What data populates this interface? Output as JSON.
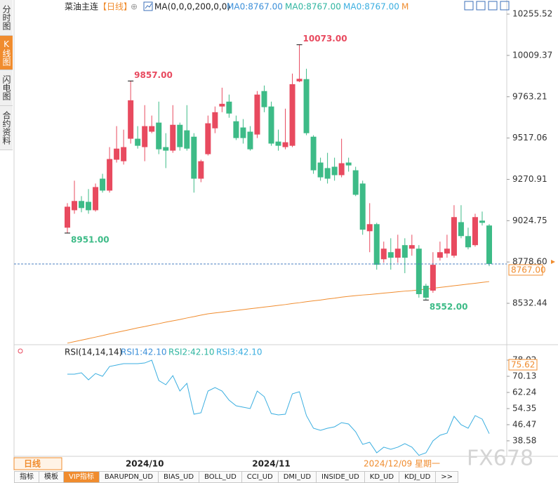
{
  "sidebar": [
    "分时图",
    "K线图",
    "闪电图",
    "合约资料"
  ],
  "header": {
    "symbol": "菜油主连",
    "period": "【日线】",
    "ma_params": "MA(0,0,0,200,0,0)",
    "ma_values": [
      {
        "text": "MA0:8767.00",
        "color": "#3b8fd9"
      },
      {
        "text": "MA0:8767.00",
        "color": "#2fb5a0"
      },
      {
        "text": "MA0:8767.00",
        "color": "#3aaee0"
      }
    ],
    "ma_more": "M"
  },
  "chart_data": {
    "type": "candlestick",
    "categories": [
      null,
      null,
      null,
      null,
      null,
      null,
      null,
      null,
      null,
      null,
      null,
      "2024/10",
      null,
      null,
      null,
      null,
      null,
      null,
      null,
      null,
      null,
      null,
      null,
      null,
      null,
      null,
      null,
      null,
      null,
      "2024/11",
      null,
      null,
      null,
      null,
      null,
      null,
      null,
      null,
      null,
      null,
      null,
      null,
      null,
      null,
      null,
      null,
      null,
      null,
      null,
      null,
      null,
      null,
      null,
      null,
      null,
      null,
      null,
      null,
      null,
      null,
      null
    ],
    "open": [
      8983,
      9087,
      9142,
      9137,
      9087,
      9275,
      9204,
      9388,
      9379,
      9513,
      9513,
      9463,
      9555,
      9609,
      9463,
      9442,
      9596,
      9563,
      9525,
      9275,
      9421,
      9575,
      9705,
      9734,
      9617,
      9580,
      9555,
      9538,
      9797,
      9705,
      9496,
      9463,
      9471,
      9855,
      9868,
      9525,
      9371,
      9338,
      9346,
      9296,
      9371,
      9325,
      9246,
      8962,
      9004,
      8795,
      8837,
      8804,
      8879,
      8858,
      8858,
      8637,
      8608,
      8804,
      8829,
      8816,
      9016,
      8933,
      8879,
      9025,
      8996
    ],
    "high": [
      9129,
      9263,
      9171,
      9213,
      9246,
      9304,
      9463,
      9588,
      9567,
      9857,
      9588,
      9713,
      9651,
      9734,
      9546,
      9713,
      9609,
      9713,
      9546,
      9388,
      9651,
      9705,
      9817,
      9776,
      9651,
      9630,
      9588,
      9797,
      9830,
      9734,
      9567,
      9692,
      9901,
      10073,
      9930,
      9534,
      9400,
      9429,
      9400,
      9513,
      9400,
      9346,
      9263,
      9129,
      9012,
      8900,
      8920,
      8941,
      8920,
      8941,
      8879,
      8649,
      8837,
      8900,
      8941,
      9117,
      9117,
      8983,
      9066,
      9079,
      9004
    ],
    "low": [
      8951,
      9066,
      9075,
      9066,
      9079,
      9192,
      9192,
      9371,
      9359,
      9484,
      9454,
      9379,
      9546,
      9421,
      9338,
      9429,
      9442,
      9442,
      9192,
      9254,
      9413,
      9546,
      9671,
      9638,
      9505,
      9484,
      9442,
      9517,
      9671,
      9471,
      9442,
      9450,
      9463,
      9850,
      9534,
      9304,
      9263,
      9246,
      9263,
      9283,
      9317,
      9171,
      8941,
      8837,
      8733,
      8774,
      8733,
      8774,
      8712,
      8816,
      8566,
      8552,
      8595,
      8787,
      8804,
      8804,
      8920,
      8854,
      8870,
      8996,
      8754
    ],
    "close": [
      9108,
      9142,
      9100,
      9087,
      9225,
      9204,
      9392,
      9454,
      9463,
      9742,
      9471,
      9588,
      9588,
      9450,
      9442,
      9596,
      9463,
      9454,
      9275,
      9379,
      9605,
      9671,
      9721,
      9663,
      9517,
      9517,
      9450,
      9776,
      9701,
      9484,
      9471,
      9492,
      9838,
      9870,
      9546,
      9325,
      9283,
      9275,
      9296,
      9367,
      9354,
      9179,
      8971,
      9004,
      8762,
      8858,
      8804,
      8858,
      8804,
      8879,
      8587,
      8566,
      8762,
      8837,
      8858,
      9046,
      8933,
      8866,
      9046,
      9012,
      8767
    ],
    "up_color": "#e84a5f",
    "down_color": "#3dbb87",
    "ylim": [
      8290,
      10306
    ],
    "yticks": [
      10255.52,
      10009.37,
      9763.21,
      9517.06,
      9270.91,
      9024.75,
      {
        "value": 8778.6,
        "label": "8778.60"
      },
      8532.44
    ],
    "last_price": {
      "value": 8767,
      "label": "8767.00",
      "color": "#f08c2e",
      "line_color": "#4a7fc0"
    },
    "ma": {
      "color": "#f08c2e",
      "values": [
        8295,
        8304,
        8313,
        8322,
        8331,
        8340,
        8350,
        8359,
        8368,
        8377,
        8386,
        8394,
        8403,
        8411,
        8420,
        8428,
        8436,
        8445,
        8453,
        8462,
        8470,
        8475,
        8480,
        8485,
        8490,
        8495,
        8500,
        8505,
        8510,
        8515,
        8520,
        8525,
        8531,
        8536,
        8542,
        8547,
        8552,
        8558,
        8563,
        8569,
        8574,
        8578,
        8582,
        8585,
        8589,
        8593,
        8597,
        8601,
        8605,
        8608,
        8612,
        8617,
        8622,
        8627,
        8632,
        8637,
        8642,
        8647,
        8652,
        8657,
        8662
      ]
    },
    "annotations": [
      {
        "index": 33,
        "value": 10073,
        "label": "10073.00",
        "position": "above",
        "color": "#e84a5f"
      },
      {
        "index": 9,
        "value": 9857,
        "label": "9857.00",
        "position": "above",
        "color": "#e84a5f"
      },
      {
        "index": 0,
        "value": 8951,
        "label": "8951.00",
        "position": "below",
        "color": "#3dbb87"
      },
      {
        "index": 51,
        "value": 8552,
        "label": "8552.00",
        "position": "below",
        "color": "#3dbb87"
      }
    ],
    "rsi": {
      "title": "RSI(14,14,14)",
      "labels": [
        {
          "text": "RSI1:42.10",
          "color": "#3b8fd9"
        },
        {
          "text": "RSI2:42.10",
          "color": "#2fb5a0"
        },
        {
          "text": "RSI3:42.10",
          "color": "#3aaee0"
        }
      ],
      "color": "#3aaee0",
      "values": [
        71.16,
        71.16,
        71.84,
        68.41,
        71.5,
        70.13,
        74.93,
        75.62,
        76.3,
        76.3,
        76.3,
        76.65,
        78.02,
        68.07,
        66.01,
        70.47,
        62.92,
        66.7,
        51.6,
        52.29,
        62.92,
        64.64,
        62.92,
        58.46,
        55.72,
        55.03,
        54.35,
        62.92,
        60.18,
        51.94,
        51.26,
        51.6,
        61.55,
        62.58,
        50.92,
        44.74,
        43.71,
        44.74,
        45.43,
        47.48,
        46.8,
        43.02,
        36.85,
        37.88,
        32.73,
        35.48,
        34.45,
        35.48,
        37.19,
        35.48,
        31.5,
        32.73,
        38.56,
        41.31,
        42.34,
        50.57,
        46.45,
        44.74,
        50.92,
        49.2,
        42.1
      ],
      "ylim": [
        31,
        84.9
      ],
      "yticks": [
        78.02,
        70.13,
        62.24,
        54.35,
        46.47,
        38.58
      ]
    },
    "crosshair": {
      "date": "2024/12/09 星期一",
      "rsi": 75.62,
      "color": "#f08c2e"
    }
  },
  "footer": {
    "period": "日线",
    "tabs": [
      "指标",
      "模板",
      "VIP指标",
      "BARUPDN_UD",
      "BIAS_UD",
      "BOLL_UD",
      "CCI_UD",
      "DMI_UD",
      "INSIDE_UD",
      "KD_UD",
      "KDJ_UD",
      ">>"
    ]
  },
  "watermark": "FX678"
}
